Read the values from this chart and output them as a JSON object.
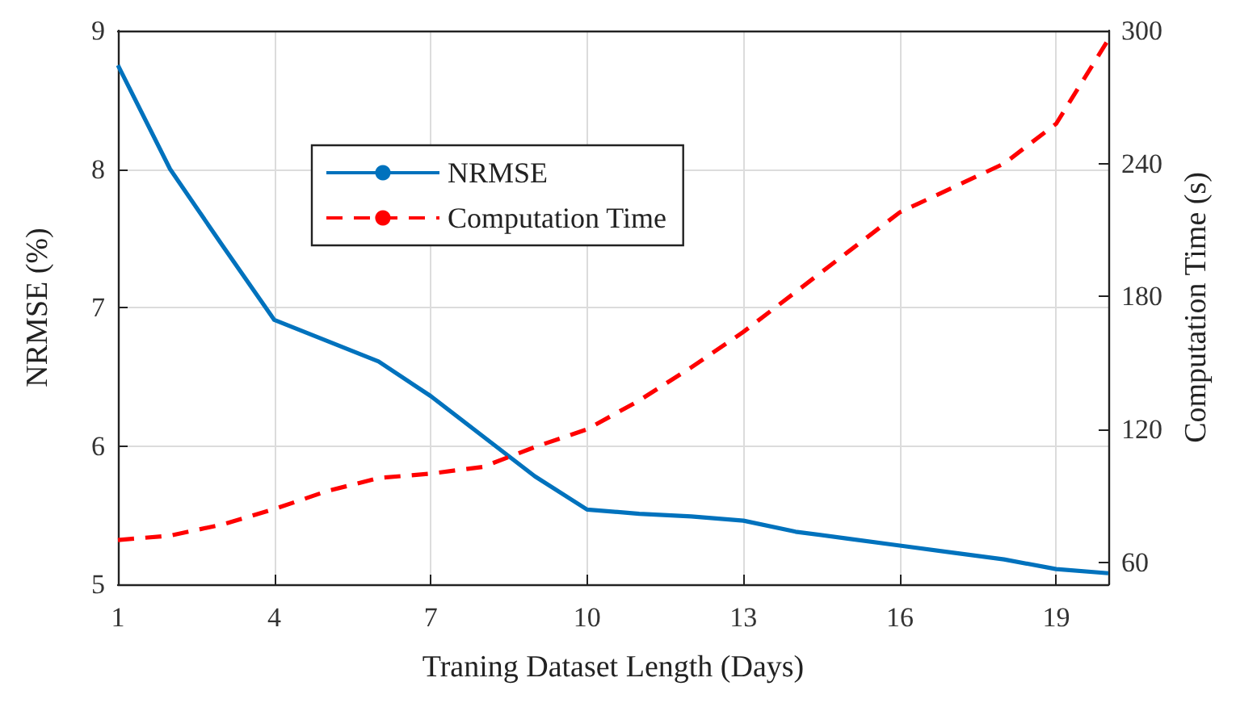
{
  "chart_data": {
    "type": "line",
    "xlabel": "Traning Dataset Length (Days)",
    "ylabel": "NRMSE (%)",
    "y2label": "Computation Time (s)",
    "x": [
      1,
      2,
      3,
      4,
      5,
      6,
      7,
      8,
      9,
      10,
      11,
      12,
      13,
      14,
      15,
      16,
      17,
      18,
      19,
      20
    ],
    "series": [
      {
        "name": "NRMSE",
        "color": "#0072bd",
        "line_style": "solid",
        "values": [
          8.75,
          8.0,
          7.45,
          6.91,
          6.76,
          6.61,
          6.36,
          6.07,
          5.78,
          5.54,
          5.51,
          5.49,
          5.46,
          5.38,
          5.33,
          5.28,
          5.23,
          5.18,
          5.11,
          5.08
        ]
      },
      {
        "name": "Computation Time",
        "color": "#ff0000",
        "line_style": "dashed",
        "axis": "y2",
        "values": [
          70,
          72,
          77,
          84,
          92,
          98,
          100,
          103,
          112,
          120,
          133,
          148,
          164,
          182,
          200,
          218,
          229,
          240,
          258,
          296
        ]
      }
    ],
    "xlim": [
      1,
      20
    ],
    "xticks": [
      1,
      4,
      7,
      10,
      13,
      16,
      19
    ],
    "ylim": [
      5,
      9
    ],
    "yticks": [
      5,
      6,
      7,
      8,
      9
    ],
    "y2lim": [
      50,
      300
    ],
    "y2ticks": [
      60,
      120,
      180,
      240,
      300
    ],
    "grid": true,
    "legend": "top left",
    "marker": "none"
  }
}
